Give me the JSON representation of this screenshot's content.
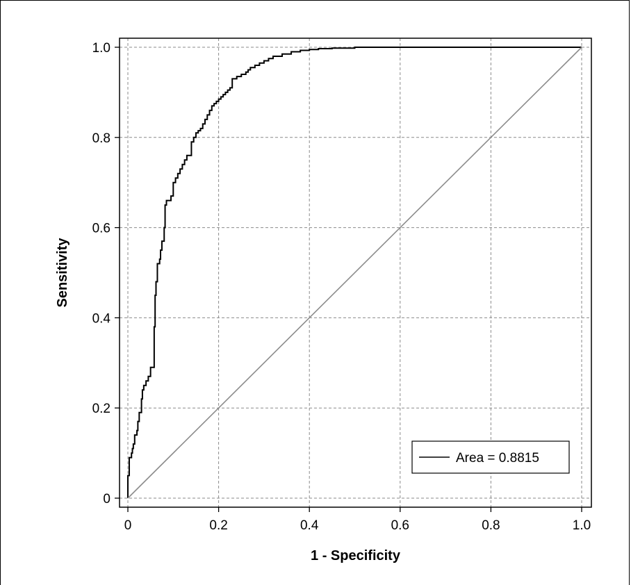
{
  "chart_data": {
    "type": "line",
    "xlabel": "1 - Specificity",
    "ylabel": "Sensitivity",
    "xlim": [
      0,
      1
    ],
    "ylim": [
      0,
      1
    ],
    "x_ticks": [
      0,
      0.2,
      0.4,
      0.6,
      0.8,
      1.0
    ],
    "x_tick_labels": [
      "0",
      "0.2",
      "0.4",
      "0.6",
      "0.8",
      "1.0"
    ],
    "y_ticks": [
      0,
      0.2,
      0.4,
      0.6,
      0.8,
      1.0
    ],
    "y_tick_labels": [
      "0",
      "0.2",
      "0.4",
      "0.6",
      "0.8",
      "1.0"
    ],
    "grid": true,
    "legend_position": "bottom-right",
    "legend_label": "Area = 0.8815",
    "series": [
      {
        "color": "#000000",
        "x": [
          0,
          0,
          0.003,
          0.003,
          0.008,
          0.01,
          0.012,
          0.015,
          0.02,
          0.022,
          0.025,
          0.03,
          0.032,
          0.035,
          0.04,
          0.04,
          0.045,
          0.05,
          0.055,
          0.058,
          0.06,
          0.062,
          0.062,
          0.065,
          0.065,
          0.07,
          0.072,
          0.075,
          0.08,
          0.082,
          0.085,
          0.09,
          0.095,
          0.1,
          0.1,
          0.105,
          0.11,
          0.115,
          0.12,
          0.125,
          0.13,
          0.14,
          0.145,
          0.15,
          0.155,
          0.16,
          0.165,
          0.17,
          0.175,
          0.18,
          0.185,
          0.19,
          0.195,
          0.2,
          0.205,
          0.21,
          0.215,
          0.22,
          0.225,
          0.23,
          0.24,
          0.25,
          0.26,
          0.265,
          0.27,
          0.28,
          0.29,
          0.3,
          0.31,
          0.32,
          0.34,
          0.36,
          0.38,
          0.4,
          0.42,
          0.45,
          0.5,
          0.55,
          0.6,
          0.65,
          0.7,
          0.75,
          0.8,
          0.85,
          0.9,
          0.95,
          1.0
        ],
        "y": [
          0,
          0.05,
          0.08,
          0.09,
          0.1,
          0.11,
          0.12,
          0.14,
          0.15,
          0.17,
          0.19,
          0.22,
          0.24,
          0.25,
          0.25,
          0.26,
          0.27,
          0.29,
          0.29,
          0.38,
          0.45,
          0.47,
          0.48,
          0.5,
          0.52,
          0.53,
          0.55,
          0.57,
          0.6,
          0.65,
          0.66,
          0.66,
          0.67,
          0.69,
          0.7,
          0.71,
          0.72,
          0.73,
          0.74,
          0.75,
          0.76,
          0.79,
          0.8,
          0.81,
          0.815,
          0.82,
          0.83,
          0.84,
          0.85,
          0.86,
          0.87,
          0.875,
          0.88,
          0.885,
          0.89,
          0.895,
          0.9,
          0.905,
          0.91,
          0.93,
          0.935,
          0.94,
          0.945,
          0.95,
          0.955,
          0.96,
          0.965,
          0.97,
          0.975,
          0.98,
          0.985,
          0.99,
          0.993,
          0.995,
          0.997,
          0.998,
          1.0,
          1.0,
          1.0,
          1.0,
          1.0,
          1.0,
          1.0,
          1.0,
          1.0,
          1.0,
          1.0
        ]
      },
      {
        "color": "#8c8c8c",
        "x": [
          0,
          1
        ],
        "y": [
          0,
          1
        ]
      }
    ]
  }
}
